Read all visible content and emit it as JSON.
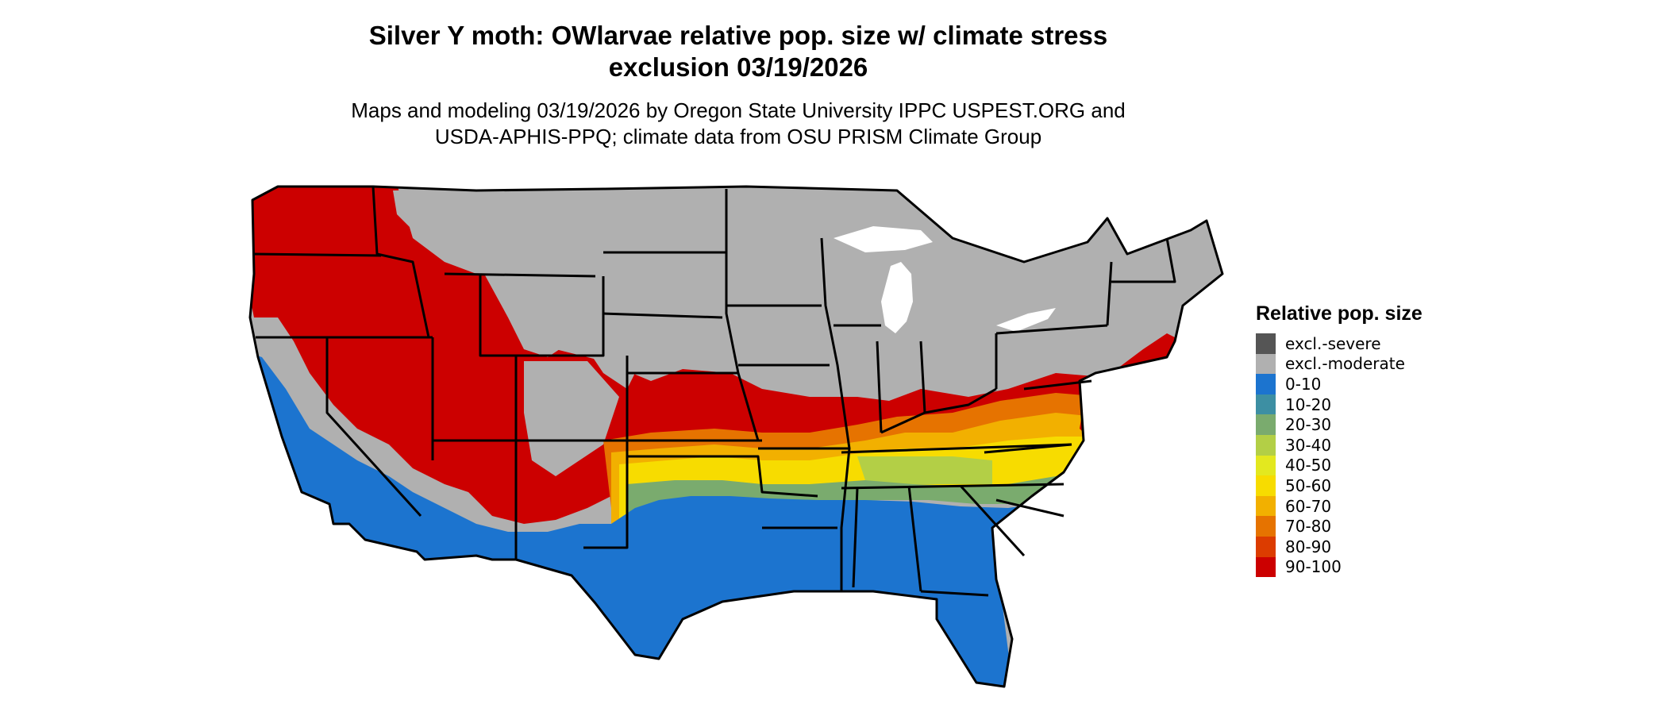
{
  "title": {
    "line1": "Silver Y moth: OWlarvae relative pop. size w/ climate stress",
    "line2": "exclusion 03/19/2026"
  },
  "subtitle": {
    "line1": "Maps and modeling 03/19/2026 by Oregon State University IPPC USPEST.ORG and",
    "line2": "USDA-APHIS-PPQ; climate data from OSU PRISM Climate Group"
  },
  "legend": {
    "title": "Relative pop. size",
    "items": [
      {
        "label": "excl.-severe",
        "color": "#555555"
      },
      {
        "label": "excl.-moderate",
        "color": "#b0b0b0"
      },
      {
        "label": "0-10",
        "color": "#1c74cf"
      },
      {
        "label": "10-20",
        "color": "#3d8fa3"
      },
      {
        "label": "20-30",
        "color": "#7aab6e"
      },
      {
        "label": "30-40",
        "color": "#b3cf46"
      },
      {
        "label": "40-50",
        "color": "#e3e81f"
      },
      {
        "label": "50-60",
        "color": "#f7dc00"
      },
      {
        "label": "60-70",
        "color": "#f2b000"
      },
      {
        "label": "70-80",
        "color": "#e67300"
      },
      {
        "label": "80-90",
        "color": "#dc3c00"
      },
      {
        "label": "90-100",
        "color": "#cc0000"
      }
    ]
  },
  "map": {
    "region": "Contiguous United States",
    "colors": {
      "state_border": "#000000",
      "excl_moderate": "#b0b0b0",
      "low": "#1c74cf",
      "high": "#cc0000"
    }
  }
}
